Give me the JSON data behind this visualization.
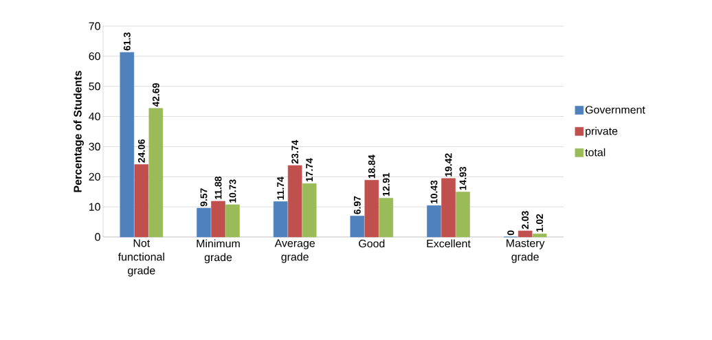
{
  "chart_data": {
    "type": "bar",
    "ylabel": "Percentage of Students",
    "categories": [
      "Not functional grade",
      "Minimum grade",
      "Average grade",
      "Good",
      "Excellent",
      "Mastery grade"
    ],
    "series": [
      {
        "name": "Government",
        "color": "#4f81bd",
        "values": [
          61.3,
          9.57,
          11.74,
          6.97,
          10.43,
          0
        ]
      },
      {
        "name": "private",
        "color": "#c0504d",
        "values": [
          24.06,
          11.88,
          23.74,
          18.84,
          19.42,
          2.03
        ]
      },
      {
        "name": "total",
        "color": "#9bbb59",
        "values": [
          42.69,
          10.73,
          17.74,
          12.91,
          14.93,
          1.02
        ]
      }
    ],
    "ylim": [
      0,
      70
    ],
    "yticks": [
      0,
      10,
      20,
      30,
      40,
      50,
      60,
      70
    ],
    "grid": "y",
    "legend": "right",
    "data_labels": true
  }
}
